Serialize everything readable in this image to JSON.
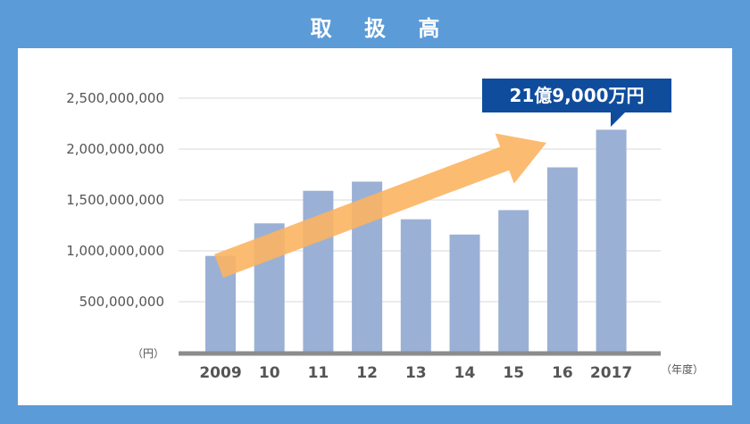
{
  "title": "取 扱 高",
  "chart_data": {
    "type": "bar",
    "categories": [
      "2009",
      "10",
      "11",
      "12",
      "13",
      "14",
      "15",
      "16",
      "2017"
    ],
    "values": [
      950000000,
      1270000000,
      1590000000,
      1680000000,
      1310000000,
      1160000000,
      1400000000,
      1820000000,
      2190000000
    ],
    "ylim": [
      0,
      2500000000
    ],
    "yticks": [
      "500,000,000",
      "1,000,000,000",
      "1,500,000,000",
      "2,000,000,000",
      "2,500,000,000"
    ],
    "ytick_values": [
      500000000,
      1000000000,
      1500000000,
      2000000000,
      2500000000
    ],
    "y_unit": "（円）",
    "x_unit": "（年度）",
    "annotation": "21億9,000万円",
    "grid": true,
    "colors": {
      "bar": "#9bb0d5",
      "arrow": "#fbb462",
      "callout": "#0f4c9c",
      "axis": "#8c8c8c",
      "grid": "#d9d9d9"
    }
  }
}
